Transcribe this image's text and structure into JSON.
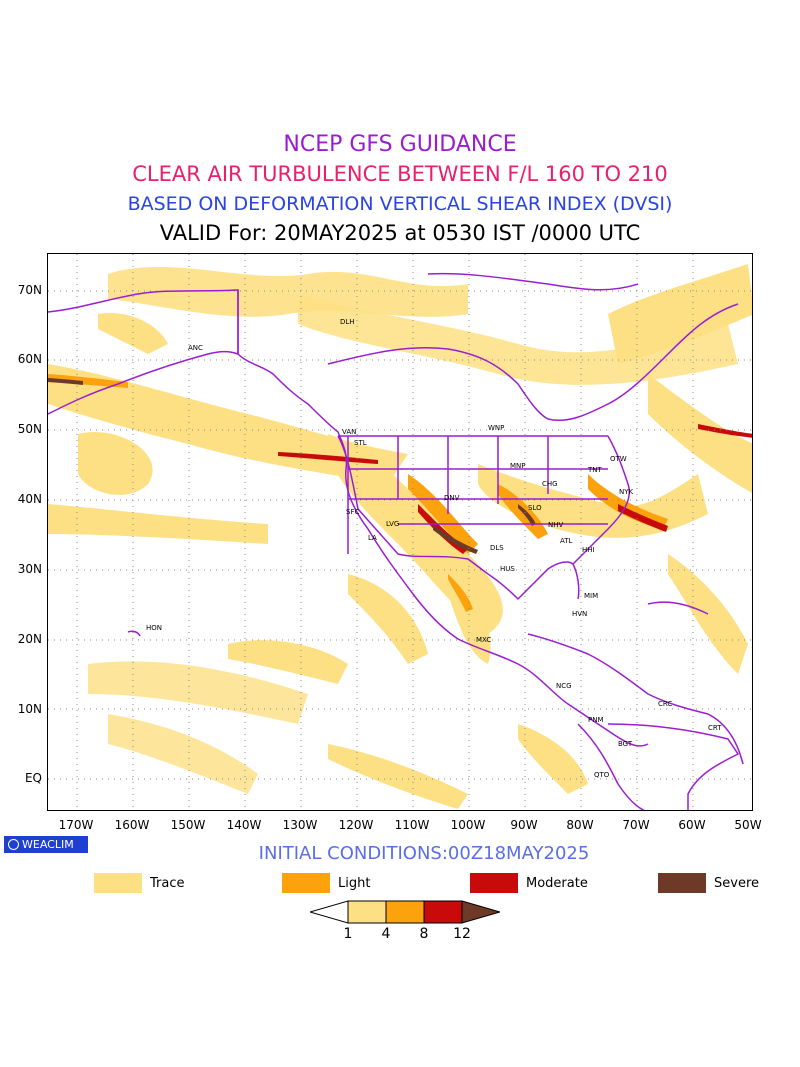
{
  "titles": {
    "line1": "NCEP GFS GUIDANCE",
    "line2": "CLEAR AIR TURBULENCE BETWEEN F/L 160 TO 210",
    "line3": "BASED ON DEFORMATION VERTICAL SHEAR INDEX (DVSI)",
    "line4": "VALID For: 20MAY2025 at 0530 IST /0000 UTC"
  },
  "map": {
    "lat_labels": [
      "70N",
      "60N",
      "50N",
      "40N",
      "30N",
      "20N",
      "10N",
      "EQ"
    ],
    "lon_labels": [
      "170W",
      "160W",
      "150W",
      "140W",
      "130W",
      "120W",
      "110W",
      "100W",
      "90W",
      "80W",
      "70W",
      "60W",
      "50W"
    ],
    "cities": [
      "ANC",
      "DLH",
      "VAN",
      "STL",
      "WNP",
      "MNP",
      "OTW",
      "TNT",
      "NYK",
      "CHG",
      "DNV",
      "SLO",
      "SFC",
      "LVG",
      "LA",
      "NHV",
      "ATL",
      "HHI",
      "DLS",
      "HUS",
      "MIM",
      "HVN",
      "HON",
      "MXC",
      "NCG",
      "PNM",
      "BGT",
      "CRC",
      "CRT",
      "QTO"
    ]
  },
  "logo": "WEACLIM",
  "initial_conditions": "INITIAL CONDITIONS:00Z18MAY2025",
  "legend": {
    "items": [
      {
        "label": "Trace",
        "color": "#fde083"
      },
      {
        "label": "Light",
        "color": "#fca20c"
      },
      {
        "label": "Moderate",
        "color": "#c80a0a"
      },
      {
        "label": "Severe",
        "color": "#6e3a28"
      }
    ]
  },
  "colorbar": {
    "ticks": [
      "1",
      "4",
      "8",
      "12"
    ],
    "colors": [
      "#fde083",
      "#fca20c",
      "#c80a0a",
      "#6e3a28"
    ]
  },
  "colors": {
    "boundary": "#9b1dd2",
    "grid": "#888888"
  }
}
